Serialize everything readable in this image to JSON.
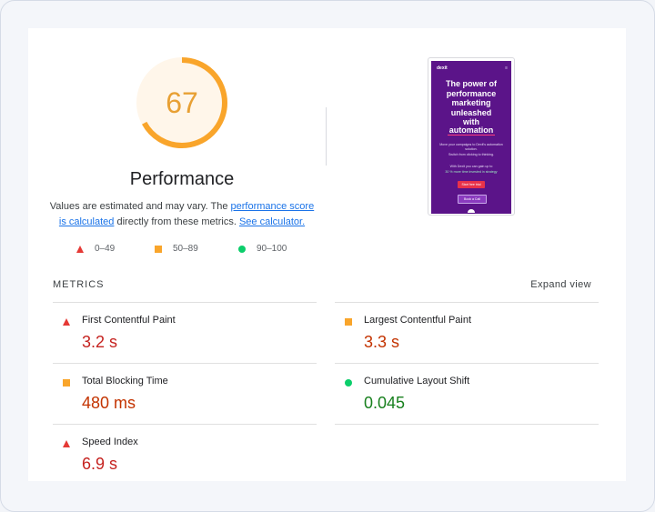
{
  "summary": {
    "score": "67",
    "score_fraction": 0.67,
    "score_color": "#f9a52b",
    "title": "Performance",
    "desc_prefix": "Values are estimated and may vary. The ",
    "desc_link1": "performance score is calculated",
    "desc_middle": " directly from these metrics. ",
    "desc_link2": "See calculator."
  },
  "legend": [
    {
      "shape": "triangle",
      "color": "#e53935",
      "label": "0–49"
    },
    {
      "shape": "square",
      "color": "#f9a52b",
      "label": "50–89"
    },
    {
      "shape": "circle",
      "color": "#0cce6b",
      "label": "90–100"
    }
  ],
  "screenshot": {
    "logo": "dexit",
    "headline": "The power of\nperformance\nmarketing\nunleashed\nwith",
    "accent": "automation",
    "body1": "Move your campaigns to Dexit's automation solution.",
    "body2": "Switch from clicking to thinking.",
    "body3": "With Dexit you can gain up to",
    "body4": "30 % more time invested in strategy",
    "btn1": "Start free trial",
    "btn2": "Book a Call",
    "background": "#5b1489"
  },
  "metrics": {
    "title": "METRICS",
    "expand": "Expand view",
    "items": [
      {
        "name": "First Contentful Paint",
        "value": "3.2 s",
        "status": "triangle"
      },
      {
        "name": "Largest Contentful Paint",
        "value": "3.3 s",
        "status": "square"
      },
      {
        "name": "Total Blocking Time",
        "value": "480 ms",
        "status": "square"
      },
      {
        "name": "Cumulative Layout Shift",
        "value": "0.045",
        "status": "circle"
      },
      {
        "name": "Speed Index",
        "value": "6.9 s",
        "status": "triangle"
      }
    ]
  }
}
